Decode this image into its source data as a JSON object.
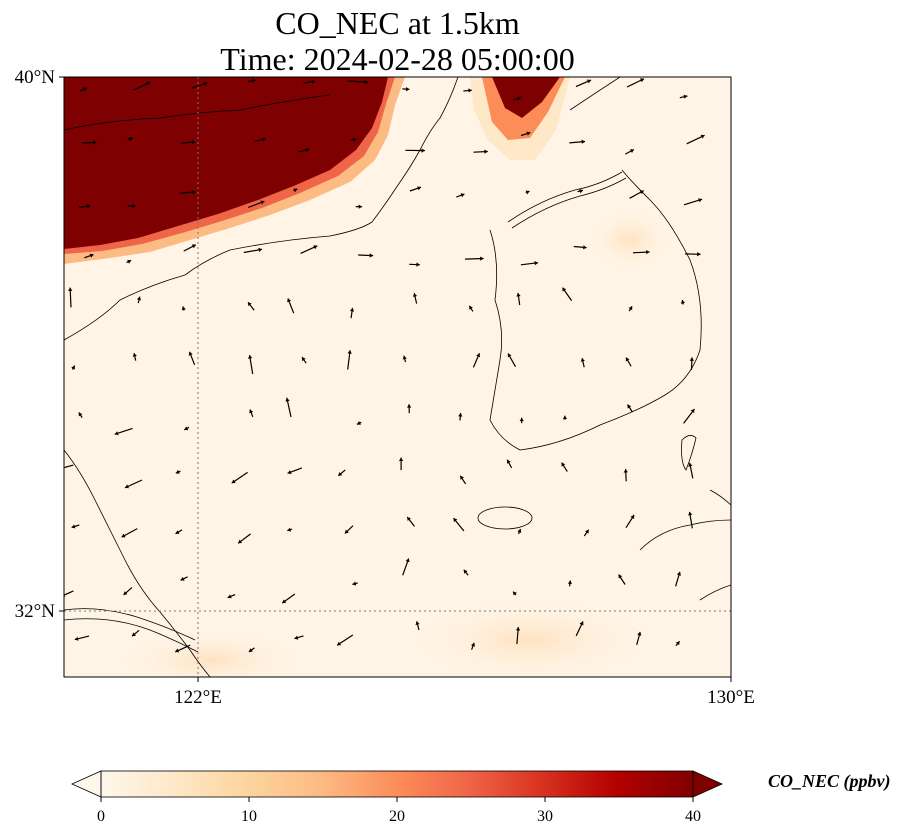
{
  "map": {
    "title_line1": "CO_NEC at 1.5km",
    "title_line2": "Time: 2024-02-28 05:00:00",
    "lat_range": [
      31.0,
      40.0
    ],
    "lon_range": [
      120.0,
      130.0
    ],
    "lat_tick_values": [
      32,
      40
    ],
    "lon_tick_values": [
      122,
      130
    ],
    "lat_tick_labels": [
      "32°N",
      "40°N"
    ],
    "lon_tick_labels": [
      "122°E",
      "130°E"
    ],
    "gridlines": "dotted at 32°N and 122°E"
  },
  "colorbar": {
    "label": "CO_NEC (ppbv)",
    "min": 0,
    "max": 40,
    "extend": "both",
    "tick_values": [
      0,
      10,
      20,
      30,
      40
    ],
    "tick_labels": [
      "0",
      "10",
      "20",
      "30",
      "40"
    ],
    "colormap": [
      "#fff7ec",
      "#fee8c8",
      "#fdd49e",
      "#fdbb84",
      "#fc8d59",
      "#ef6548",
      "#d7301f",
      "#b30000",
      "#7f0000"
    ]
  },
  "plume": {
    "description_color_high": "#7f0000",
    "max_value_ppbv": 40
  }
}
